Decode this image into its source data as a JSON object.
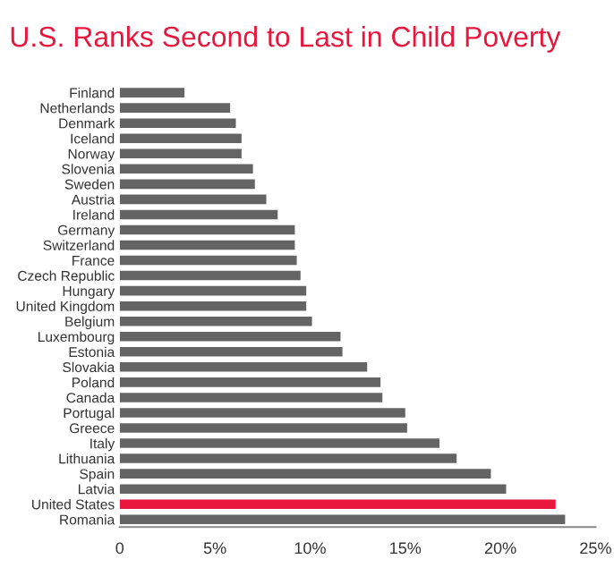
{
  "chart_data": {
    "type": "bar",
    "orientation": "horizontal",
    "title": "U.S. Ranks Second to Last in Child Poverty",
    "categories": [
      "Finland",
      "Netherlands",
      "Denmark",
      "Iceland",
      "Norway",
      "Slovenia",
      "Sweden",
      "Austria",
      "Ireland",
      "Germany",
      "Switzerland",
      "France",
      "Czech Republic",
      "Hungary",
      "United Kingdom",
      "Belgium",
      "Luxembourg",
      "Estonia",
      "Slovakia",
      "Poland",
      "Canada",
      "Portugal",
      "Greece",
      "Italy",
      "Lithuania",
      "Spain",
      "Latvia",
      "United States",
      "Romania"
    ],
    "values": [
      3.4,
      5.8,
      6.1,
      6.4,
      6.4,
      7.0,
      7.1,
      7.7,
      8.3,
      9.2,
      9.2,
      9.3,
      9.5,
      9.8,
      9.8,
      10.1,
      11.6,
      11.7,
      13.0,
      13.7,
      13.8,
      15.0,
      15.1,
      16.8,
      17.7,
      19.5,
      20.3,
      22.9,
      23.4
    ],
    "colors": [
      "#646464",
      "#646464",
      "#646464",
      "#646464",
      "#646464",
      "#646464",
      "#646464",
      "#646464",
      "#646464",
      "#646464",
      "#646464",
      "#646464",
      "#646464",
      "#646464",
      "#646464",
      "#646464",
      "#646464",
      "#646464",
      "#646464",
      "#646464",
      "#646464",
      "#646464",
      "#646464",
      "#646464",
      "#646464",
      "#646464",
      "#646464",
      "#e8163c",
      "#646464"
    ],
    "xlim": [
      0,
      25
    ],
    "xticks": [
      0,
      {
        "value": 5,
        "label": "5%"
      },
      {
        "value": 10,
        "label": "10%"
      },
      {
        "value": 15,
        "label": "15%"
      },
      {
        "value": 20,
        "label": "20%"
      },
      {
        "value": 25,
        "label": "25%"
      }
    ],
    "grid": false,
    "legend": false
  }
}
